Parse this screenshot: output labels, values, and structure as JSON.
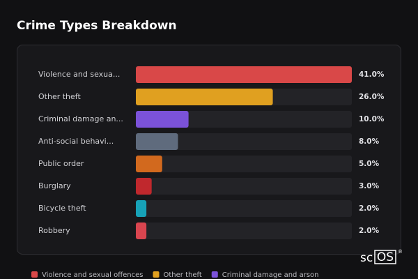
{
  "chart_data": {
    "type": "hbar",
    "title": "Crime Types Breakdown",
    "categories": [
      "Violence and sexua...",
      "Other theft",
      "Criminal damage an...",
      "Anti-social behavi...",
      "Public order",
      "Burglary",
      "Bicycle theft",
      "Robbery"
    ],
    "values": [
      41,
      26,
      10,
      8,
      5,
      3,
      2,
      2
    ],
    "value_labels": [
      "41.0%",
      "26.0%",
      "10.0%",
      "8.0%",
      "5.0%",
      "3.0%",
      "2.0%",
      "2.0%"
    ],
    "colors": [
      "#d94848",
      "#e0a020",
      "#7b52d9",
      "#5f6b7d",
      "#d2691e",
      "#c0282d",
      "#17a2b8",
      "#d9454f"
    ],
    "xlim": [
      0,
      41
    ],
    "legend": [
      {
        "name": "Violence and sexual offences",
        "color": "#d94848"
      },
      {
        "name": "Other theft",
        "color": "#e0a020"
      },
      {
        "name": "Criminal damage and arson",
        "color": "#7b52d9"
      }
    ]
  },
  "logo": {
    "prefix": "sc",
    "boxed": "OS",
    "mark": "®"
  }
}
